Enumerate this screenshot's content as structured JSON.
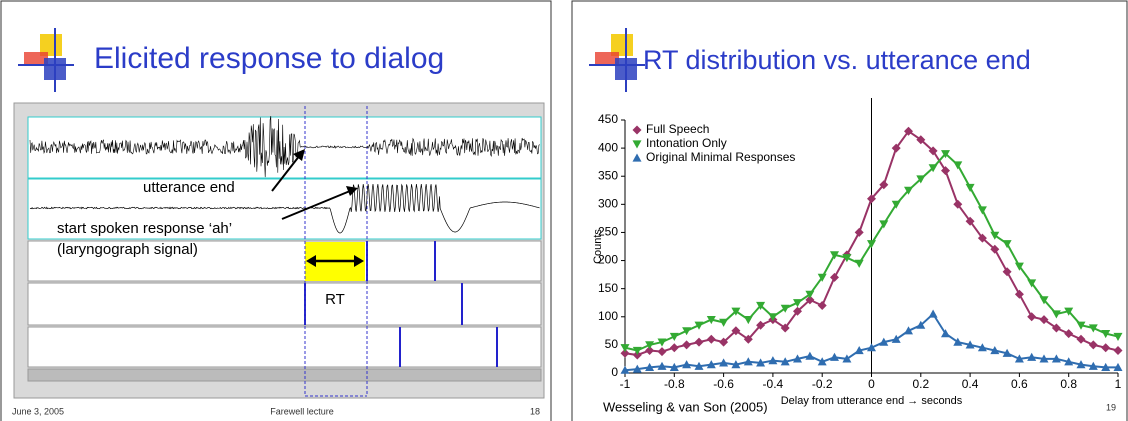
{
  "slides": [
    {
      "title": "Elicited response to dialog",
      "figure": {
        "annotations": [
          "utterance end",
          "start spoken response ‘ah’",
          "(laryngograph signal)",
          "RT"
        ]
      },
      "footer": {
        "date": "June 3, 2005",
        "center": "Farewell lecture",
        "page": "18"
      }
    },
    {
      "title": "RT distribution vs. utterance end",
      "chart_data": {
        "type": "line",
        "x_label": "Delay from utterance end → seconds",
        "y_label": "Counts",
        "x": [
          -1,
          -0.95,
          -0.9,
          -0.85,
          -0.8,
          -0.75,
          -0.7,
          -0.65,
          -0.6,
          -0.55,
          -0.5,
          -0.45,
          -0.4,
          -0.35,
          -0.3,
          -0.25,
          -0.2,
          -0.15,
          -0.1,
          -0.05,
          0,
          0.05,
          0.1,
          0.15,
          0.2,
          0.25,
          0.3,
          0.35,
          0.4,
          0.45,
          0.5,
          0.55,
          0.6,
          0.65,
          0.7,
          0.75,
          0.8,
          0.85,
          0.9,
          0.95,
          1
        ],
        "series": [
          {
            "name": "Full Speech",
            "color": "#993366",
            "marker": "diamond",
            "values": [
              35,
              32,
              40,
              38,
              45,
              50,
              55,
              60,
              55,
              75,
              60,
              85,
              95,
              80,
              110,
              130,
              120,
              170,
              210,
              250,
              310,
              335,
              400,
              430,
              415,
              395,
              360,
              300,
              270,
              240,
              220,
              180,
              140,
              100,
              95,
              80,
              70,
              60,
              50,
              45,
              40
            ]
          },
          {
            "name": "Intonation Only",
            "color": "#33aa33",
            "marker": "triangle-down",
            "values": [
              45,
              40,
              50,
              55,
              65,
              75,
              85,
              95,
              90,
              110,
              95,
              120,
              100,
              115,
              125,
              140,
              170,
              210,
              205,
              195,
              230,
              265,
              300,
              325,
              345,
              365,
              390,
              370,
              330,
              290,
              245,
              230,
              190,
              160,
              130,
              105,
              110,
              85,
              80,
              70,
              65
            ]
          },
          {
            "name": "Original Minimal Responses",
            "color": "#2f6db0",
            "marker": "triangle-up",
            "values": [
              5,
              7,
              10,
              12,
              10,
              15,
              12,
              15,
              18,
              15,
              20,
              18,
              22,
              20,
              25,
              30,
              20,
              28,
              25,
              40,
              45,
              55,
              60,
              75,
              85,
              105,
              70,
              55,
              50,
              45,
              40,
              35,
              25,
              28,
              25,
              25,
              20,
              15,
              12,
              10,
              10
            ]
          }
        ],
        "xlim": [
          -1,
          1
        ],
        "xticks": [
          -1,
          -0.8,
          -0.6,
          -0.4,
          -0.2,
          0,
          0.2,
          0.4,
          0.6,
          0.8,
          1
        ],
        "ylim": [
          0,
          450
        ],
        "yticks": [
          0,
          50,
          100,
          150,
          200,
          250,
          300,
          350,
          400,
          450
        ],
        "zero_line": true,
        "legend": "upper left"
      },
      "footer": {
        "source": "Wesseling & van Son (2005)",
        "page": "19"
      }
    }
  ]
}
